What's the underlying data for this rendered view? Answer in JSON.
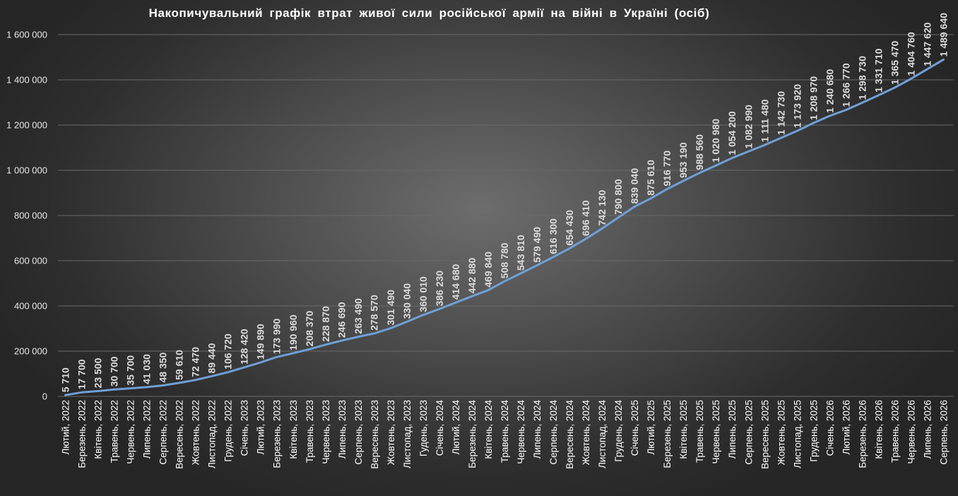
{
  "chart_data": {
    "type": "line",
    "title": "Накопичувальний графік втрат живої сили російської армії на війні в Україні (осіб)",
    "xlabel": "",
    "ylabel": "",
    "ylim": [
      0,
      1600000
    ],
    "y_ticks": [
      "0",
      "200 000",
      "400 000",
      "600 000",
      "800 000",
      "1 000 000",
      "1 200 000",
      "1 400 000",
      "1 600 000"
    ],
    "grid": true,
    "legend": "none",
    "line_color": "#6fa0d8",
    "categories": [
      "Лютий, 2022",
      "Березень, 2022",
      "Квітень, 2022",
      "Травень, 2022",
      "Червень, 2022",
      "Липень, 2022",
      "Серпень, 2022",
      "Вересень, 2022",
      "Жовтень, 2022",
      "Листопад, 2022",
      "Грудень, 2022",
      "Січень, 2023",
      "Лютий, 2023",
      "Березень, 2023",
      "Квітень, 2023",
      "Травень, 2023",
      "Червень, 2023",
      "Липень, 2023",
      "Серпень, 2023",
      "Вересень, 2023",
      "Жовтень, 2023",
      "Листопад, 2023",
      "Гудень, 2023",
      "Січень, 2024",
      "Лютий, 2024",
      "Березень, 2024",
      "Квітень, 2024",
      "Травень, 2024",
      "Червень, 2024",
      "Липень, 2024",
      "Серпень, 2024",
      "Вересень, 2024",
      "Жовтень, 2024",
      "Листопад, 2024",
      "Грудень, 2024",
      "Січень, 2025",
      "Лютий, 2025",
      "Березень, 2025",
      "Квітень, 2025",
      "Травень, 2025",
      "Червень, 2025",
      "Липень, 2025",
      "Серпень, 2025",
      "Вересень, 2025",
      "Жовтень, 2025",
      "Листопад, 2025",
      "Грудень, 2025",
      "Січень, 2026",
      "Лютий, 2026",
      "Березень, 2026",
      "Квітень, 2026",
      "Травень, 2026",
      "Червень, 2026",
      "Липень, 2026",
      "Серпень, 2026"
    ],
    "series": [
      {
        "values": [
          5710,
          17700,
          23500,
          30700,
          35700,
          41030,
          48350,
          59610,
          72470,
          89440,
          106720,
          128420,
          149890,
          173990,
          190960,
          208370,
          228870,
          246690,
          263490,
          278570,
          301490,
          330040,
          360010,
          386230,
          414680,
          442880,
          469840,
          508780,
          543810,
          579490,
          616300,
          654430,
          696410,
          742130,
          790800,
          839040,
          875610,
          916770,
          953190,
          988560,
          1020980,
          1054200,
          1082990,
          1111480,
          1142730,
          1173920,
          1208970,
          1240680,
          1266770,
          1298730,
          1331710,
          1365470,
          1404760,
          1447620,
          1489640
        ],
        "labels": [
          "5 710",
          "17 700",
          "23 500",
          "30 700",
          "35 700",
          "41 030",
          "48 350",
          "59 610",
          "72 470",
          "89 440",
          "106 720",
          "128 420",
          "149 890",
          "173 990",
          "190 960",
          "208 370",
          "228 870",
          "246 690",
          "263 490",
          "278 570",
          "301 490",
          "330 040",
          "360 010",
          "386 230",
          "414 680",
          "442 880",
          "469 840",
          "508 780",
          "543 810",
          "579 490",
          "616 300",
          "654 430",
          "696 410",
          "742 130",
          "790 800",
          "839 040",
          "875 610",
          "916 770",
          "953 190",
          "988 560",
          "1 020 980",
          "1 054 200",
          "1 082 990",
          "1 111 480",
          "1 142 730",
          "1 173 920",
          "1 208 970",
          "1 240 680",
          "1 266 770",
          "1 298 730",
          "1 331 710",
          "1 365 470",
          "1 404 760",
          "1 447 620",
          "1 489 640"
        ]
      }
    ]
  }
}
